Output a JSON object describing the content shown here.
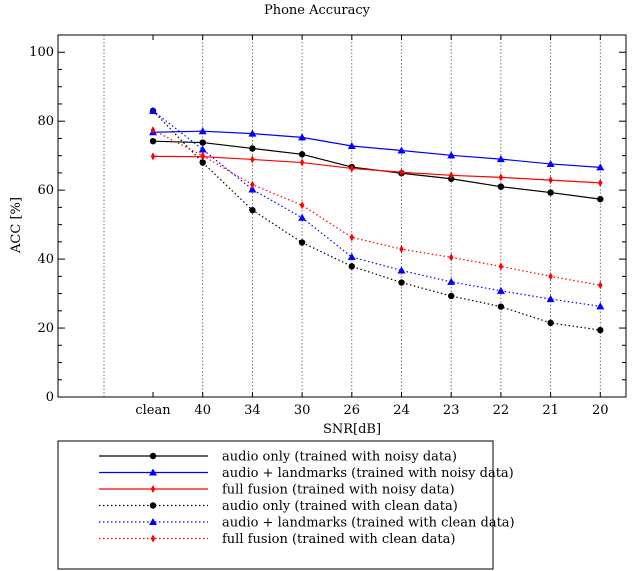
{
  "chart_data": {
    "type": "line",
    "title": "Phone Accuracy",
    "xlabel": "SNR[dB]",
    "ylabel": "ACC [%]",
    "categories": [
      "clean",
      "40",
      "34",
      "30",
      "26",
      "24",
      "23",
      "22",
      "21",
      "20"
    ],
    "yticks": [
      0,
      20,
      40,
      60,
      80,
      100
    ],
    "ylim": [
      0,
      105
    ],
    "grid": "vertical dotted",
    "legend_position": "bottom",
    "series": [
      {
        "name": "audio only (trained with noisy data)",
        "color": "#000000",
        "style": "solid",
        "marker": "circle",
        "values": [
          74.2,
          73.8,
          72.1,
          70.4,
          66.7,
          64.9,
          63.3,
          61.0,
          59.3,
          57.4
        ]
      },
      {
        "name": "audio + landmarks (trained with noisy data)",
        "color": "#0000ff",
        "style": "solid",
        "marker": "triangle",
        "values": [
          76.8,
          77.1,
          76.4,
          75.3,
          72.8,
          71.5,
          70.1,
          69.0,
          67.6,
          66.6
        ]
      },
      {
        "name": "full fusion (trained with noisy data)",
        "color": "#ff0000",
        "style": "solid",
        "marker": "diamond",
        "values": [
          69.8,
          69.7,
          68.9,
          68.0,
          66.3,
          65.2,
          64.3,
          63.7,
          62.9,
          62.1
        ]
      },
      {
        "name": "audio only (trained with clean data)",
        "color": "#000000",
        "style": "dotted",
        "marker": "circle",
        "values": [
          83.0,
          68.0,
          54.2,
          44.8,
          37.9,
          33.2,
          29.3,
          26.2,
          21.5,
          19.4
        ]
      },
      {
        "name": "audio + landmarks (trained with clean data)",
        "color": "#0000ff",
        "style": "dotted",
        "marker": "triangle",
        "values": [
          83.0,
          71.8,
          60.2,
          52.0,
          40.6,
          36.7,
          33.4,
          30.8,
          28.4,
          26.3
        ]
      },
      {
        "name": "full fusion (trained with clean data)",
        "color": "#ff0000",
        "style": "dotted",
        "marker": "diamond",
        "values": [
          77.4,
          70.0,
          61.6,
          55.6,
          46.3,
          42.9,
          40.5,
          37.9,
          35.0,
          32.4
        ]
      }
    ]
  }
}
